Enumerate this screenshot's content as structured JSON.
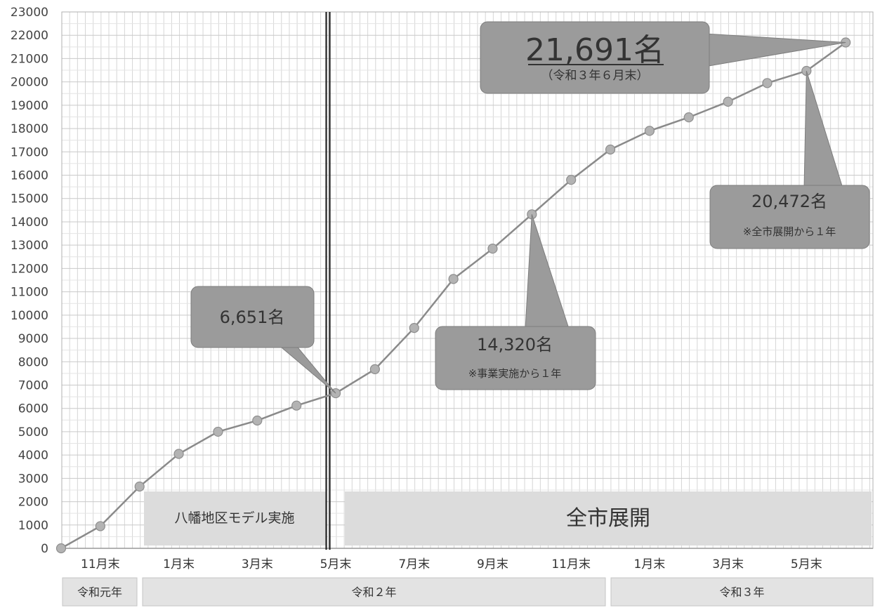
{
  "chart_data": {
    "type": "line",
    "ylim": [
      0,
      23000
    ],
    "y_ticks": [
      "0",
      "1000",
      "2000",
      "3000",
      "4000",
      "5000",
      "6000",
      "7000",
      "8000",
      "9000",
      "10000",
      "11000",
      "12000",
      "13000",
      "14000",
      "15000",
      "16000",
      "17000",
      "18000",
      "19000",
      "20000",
      "21000",
      "22000",
      "23000"
    ],
    "x_tick_labels": [
      "11月末",
      "1月末",
      "3月末",
      "5月末",
      "7月末",
      "9月末",
      "11月末",
      "1月末",
      "3月末",
      "5月末"
    ],
    "eras": [
      "令和元年",
      "令和２年",
      "令和３年"
    ],
    "series": [
      {
        "values": [
          0,
          950,
          2650,
          4050,
          5000,
          5480,
          6120,
          6651,
          7680,
          9450,
          11550,
          12850,
          14320,
          15800,
          17100,
          17900,
          18480,
          19150,
          19950,
          20472,
          21691
        ]
      }
    ],
    "grid": true,
    "divider_at_index": 7,
    "phases": [
      "八幡地区モデル実施",
      "全市展開"
    ],
    "callouts": [
      {
        "value": "6,651名",
        "note": ""
      },
      {
        "value": "14,320名",
        "note": "※事業実施から１年"
      },
      {
        "value": "20,472名",
        "note": "※全市展開から１年"
      },
      {
        "value": "21,691名",
        "note": "（令和３年６月末）"
      }
    ]
  },
  "colors": {
    "grid": "#d6d6d6",
    "line": "#8a8a8a",
    "marker": "#b3b3b3",
    "callout": "#9b9b9b",
    "band": "#dcdcdc",
    "axis": "#b0b0b0"
  }
}
